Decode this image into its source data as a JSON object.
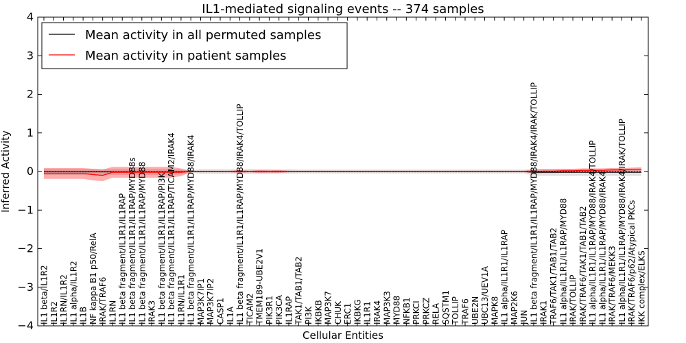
{
  "chart_data": {
    "type": "line",
    "title": "IL1-mediated signaling events -- 374 samples",
    "xlabel": "Cellular Entities",
    "ylabel": "Inferred Activity",
    "ylim": [
      -4,
      4
    ],
    "yticks": [
      -4,
      -3,
      -2,
      -1,
      0,
      1,
      2,
      3,
      4
    ],
    "grid": false,
    "legend": {
      "placement": "top-left",
      "entries": [
        {
          "label": "Mean activity in all permuted samples",
          "color": "#000000"
        },
        {
          "label": "Mean activity in patient samples",
          "color": "#ff0000"
        }
      ]
    },
    "categories": [
      "IL1 beta/IL1R2",
      "IL1R2",
      "IL1RN/IL1R2",
      "IL1 alpha/IL1R2",
      "IL1B",
      "NF kappa B1 p50/RelA",
      "IRAK/TRAF6",
      "IL1RN",
      "IL1 beta fragment/IL1R1/IL1RAP",
      "IL1 beta fragment/IL1R1/IL1RAP/MYD88s",
      "IL1 beta fragment/IL1R1/IL1RAP/MYD88",
      "IRAK3",
      "IL1 beta fragment/IL1R1/IL1RAP/PI3K",
      "IL1 beta fragment/IL1R1/IL1RAP/TICAM2/IRAK4",
      "IL1RN/IL1R1",
      "IL1 beta fragment/IL1R1/IL1RAP/MYD88/IRAK4",
      "MAP3K7IP1",
      "MAP3K7IP2",
      "CASP1",
      "IL1A",
      "IL1 beta fragment/IL1R1/IL1RAP/MYD88/IRAK4/TOLLIP",
      "TICAM2",
      "TMEM189-UBE2V1",
      "PIK3R1",
      "PIK3CA",
      "IL1RAP",
      "TAK1/TAB1/TAB2",
      "PI3K",
      "IKBKB",
      "MAP3K7",
      "CHUK",
      "ERC1",
      "IKBKG",
      "IL1R1",
      "IRAK4",
      "MAP3K3",
      "MYD88",
      "NFKB1",
      "PRKCI",
      "PRKCZ",
      "RELA",
      "SQSTM1",
      "TOLLIP",
      "TRAF6",
      "UBE2N",
      "UBC13/UEV1A",
      "MAPK8",
      "IL1 alpha/IL1R1/IL1RAP",
      "MAP2K6",
      "JUN",
      "IL1 beta fragment/IL1R1/IL1RAP/MYD88/IRAK4/IRAK/TOLLIP",
      "IRAK1",
      "TRAF6/TAK1/TAB1/TAB2",
      "IL1 alpha/IL1R1/IL1RAP/MYD88",
      "IRAK/TOLLIP",
      "IRAK/TRAF6/TAK1/TAB1/TAB2",
      "IL1 alpha/IL1R1/IL1RAP/MYD88/IRAK4/TOLLIP",
      "IL1 alpha/IL1R1/IL1RAP/MYD88/IRAK4",
      "IRAK/TRAF6/MEKK3",
      "IL1 alpha/IL1R1/IL1RAP/MYD88/IRAK4/IRAK/TOLLIP",
      "IRAK/TRAF6/p62/Atypical PKCs",
      "IKK complex/ELKS"
    ],
    "series": [
      {
        "name": "Mean activity in patient samples",
        "color": "#ff0000",
        "values": [
          -0.05,
          -0.05,
          -0.05,
          -0.05,
          -0.05,
          -0.08,
          -0.1,
          -0.02,
          -0.02,
          -0.02,
          -0.02,
          -0.02,
          -0.02,
          -0.02,
          -0.02,
          0.0,
          0.0,
          0.0,
          0.0,
          0.0,
          0.0,
          0.0,
          0.0,
          0.0,
          0.0,
          0.0,
          0.0,
          0.0,
          0.0,
          0.0,
          0.0,
          0.0,
          0.0,
          0.0,
          0.0,
          0.0,
          0.0,
          0.0,
          0.0,
          0.0,
          0.0,
          0.0,
          0.0,
          0.0,
          0.0,
          0.0,
          0.0,
          0.0,
          0.0,
          0.0,
          0.0,
          0.01,
          0.01,
          0.02,
          0.02,
          0.03,
          0.03,
          0.03,
          0.04,
          0.04,
          0.05,
          0.06
        ],
        "band": [
          0.14,
          0.14,
          0.14,
          0.14,
          0.14,
          0.15,
          0.15,
          0.14,
          0.14,
          0.14,
          0.14,
          0.14,
          0.14,
          0.14,
          0.1,
          0.02,
          0.02,
          0.02,
          0.02,
          0.02,
          0.04,
          0.02,
          0.04,
          0.03,
          0.04,
          0.02,
          0.02,
          0.02,
          0.02,
          0.02,
          0.02,
          0.02,
          0.02,
          0.02,
          0.02,
          0.02,
          0.02,
          0.02,
          0.02,
          0.02,
          0.02,
          0.02,
          0.02,
          0.02,
          0.02,
          0.02,
          0.02,
          0.02,
          0.02,
          0.02,
          0.05,
          0.05,
          0.05,
          0.05,
          0.05,
          0.05,
          0.05,
          0.05,
          0.05,
          0.05,
          0.05,
          0.05
        ]
      },
      {
        "name": "Mean activity in all permuted samples",
        "color": "#000000",
        "values": [
          -0.01,
          -0.01,
          -0.01,
          -0.01,
          -0.01,
          -0.01,
          -0.01,
          -0.01,
          -0.01,
          -0.01,
          -0.01,
          -0.01,
          -0.01,
          -0.01,
          -0.01,
          0.0,
          0.0,
          0.0,
          0.0,
          0.0,
          0.0,
          0.0,
          0.0,
          0.0,
          0.0,
          0.0,
          0.0,
          0.0,
          0.0,
          0.0,
          0.0,
          0.0,
          0.0,
          0.0,
          0.0,
          0.0,
          0.0,
          0.0,
          0.0,
          0.0,
          0.0,
          0.0,
          0.0,
          0.0,
          0.0,
          0.0,
          0.0,
          0.0,
          0.0,
          0.0,
          -0.02,
          -0.02,
          -0.02,
          -0.02,
          -0.02,
          -0.02,
          -0.02,
          -0.02,
          -0.02,
          -0.02,
          -0.02,
          -0.02
        ],
        "band": [
          0.08,
          0.08,
          0.08,
          0.08,
          0.08,
          0.08,
          0.08,
          0.08,
          0.08,
          0.08,
          0.08,
          0.08,
          0.08,
          0.08,
          0.06,
          0.03,
          0.06,
          0.06,
          0.06,
          0.06,
          0.06,
          0.07,
          0.06,
          0.07,
          0.05,
          0.06,
          0.05,
          0.05,
          0.05,
          0.05,
          0.05,
          0.05,
          0.05,
          0.05,
          0.05,
          0.05,
          0.05,
          0.05,
          0.05,
          0.05,
          0.05,
          0.05,
          0.05,
          0.05,
          0.05,
          0.05,
          0.05,
          0.05,
          0.05,
          0.05,
          0.09,
          0.09,
          0.09,
          0.09,
          0.09,
          0.09,
          0.09,
          0.09,
          0.09,
          0.09,
          0.09,
          0.09
        ]
      }
    ]
  }
}
